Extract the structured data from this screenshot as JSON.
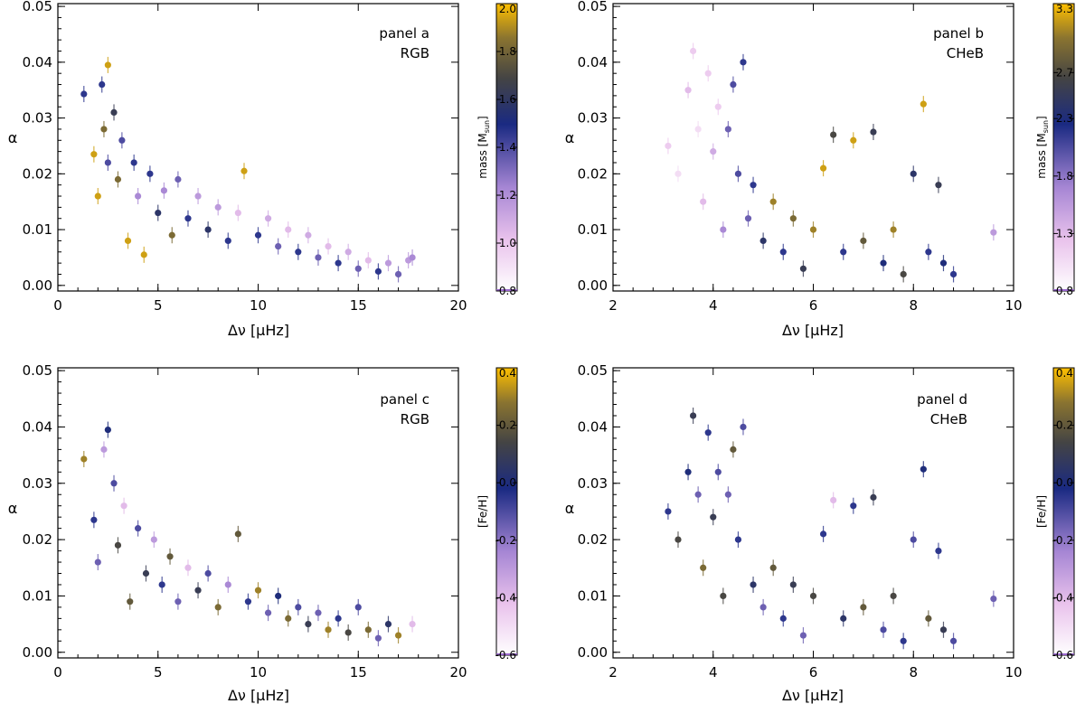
{
  "colormap": [
    "#ffffff",
    "#e9c2ec",
    "#a686d4",
    "#1a2a82",
    "#444444",
    "#8a7430",
    "#ffc000"
  ],
  "chart_data": [
    {
      "type": "scatter",
      "id": "a",
      "annotation": [
        "panel a",
        "RGB"
      ],
      "xlabel": "Δν [μHz]",
      "ylabel": "α",
      "xlim": [
        0,
        20
      ],
      "ylim": [
        -0.001,
        0.0505
      ],
      "xticks": [
        0,
        5,
        10,
        15,
        20
      ],
      "yticks": [
        0.0,
        0.01,
        0.02,
        0.03,
        0.04,
        0.05
      ],
      "ytick_labels": [
        "0.00",
        "0.01",
        "0.02",
        "0.03",
        "0.04",
        "0.05"
      ],
      "colorbar": {
        "label": "mass [Msun]",
        "range": [
          0.8,
          2.0
        ],
        "ticks": [
          0.8,
          1.0,
          1.2,
          1.4,
          1.6,
          1.8,
          2.0
        ],
        "tick_labels": [
          "0.8",
          "1.0",
          "1.2",
          "1.4",
          "1.6",
          "1.8",
          "2.0"
        ]
      },
      "points": [
        {
          "x": 1.3,
          "y": 0.0343,
          "c": 0.55
        },
        {
          "x": 1.8,
          "y": 0.0235,
          "c": 0.95
        },
        {
          "x": 2.0,
          "y": 0.016,
          "c": 0.95
        },
        {
          "x": 2.2,
          "y": 0.036,
          "c": 0.55
        },
        {
          "x": 2.3,
          "y": 0.028,
          "c": 0.85
        },
        {
          "x": 2.5,
          "y": 0.0395,
          "c": 0.95
        },
        {
          "x": 2.5,
          "y": 0.022,
          "c": 0.5
        },
        {
          "x": 2.8,
          "y": 0.031,
          "c": 0.7
        },
        {
          "x": 3.0,
          "y": 0.019,
          "c": 0.85
        },
        {
          "x": 3.2,
          "y": 0.026,
          "c": 0.5
        },
        {
          "x": 3.5,
          "y": 0.008,
          "c": 0.95
        },
        {
          "x": 3.8,
          "y": 0.022,
          "c": 0.55
        },
        {
          "x": 4.0,
          "y": 0.016,
          "c": 0.35
        },
        {
          "x": 4.3,
          "y": 0.0055,
          "c": 0.95
        },
        {
          "x": 4.6,
          "y": 0.02,
          "c": 0.55
        },
        {
          "x": 5.0,
          "y": 0.013,
          "c": 0.65
        },
        {
          "x": 5.3,
          "y": 0.017,
          "c": 0.35
        },
        {
          "x": 5.7,
          "y": 0.009,
          "c": 0.85
        },
        {
          "x": 6.0,
          "y": 0.019,
          "c": 0.45
        },
        {
          "x": 6.5,
          "y": 0.012,
          "c": 0.55
        },
        {
          "x": 7.0,
          "y": 0.016,
          "c": 0.3
        },
        {
          "x": 7.5,
          "y": 0.01,
          "c": 0.65
        },
        {
          "x": 8.0,
          "y": 0.014,
          "c": 0.3
        },
        {
          "x": 8.5,
          "y": 0.008,
          "c": 0.55
        },
        {
          "x": 9.0,
          "y": 0.013,
          "c": 0.2
        },
        {
          "x": 9.3,
          "y": 0.0205,
          "c": 0.95
        },
        {
          "x": 10.0,
          "y": 0.009,
          "c": 0.55
        },
        {
          "x": 10.5,
          "y": 0.012,
          "c": 0.25
        },
        {
          "x": 11.0,
          "y": 0.007,
          "c": 0.45
        },
        {
          "x": 11.5,
          "y": 0.01,
          "c": 0.2
        },
        {
          "x": 12.0,
          "y": 0.006,
          "c": 0.55
        },
        {
          "x": 12.5,
          "y": 0.009,
          "c": 0.25
        },
        {
          "x": 13.0,
          "y": 0.005,
          "c": 0.45
        },
        {
          "x": 13.5,
          "y": 0.007,
          "c": 0.2
        },
        {
          "x": 14.0,
          "y": 0.004,
          "c": 0.55
        },
        {
          "x": 14.5,
          "y": 0.006,
          "c": 0.25
        },
        {
          "x": 15.0,
          "y": 0.003,
          "c": 0.45
        },
        {
          "x": 15.5,
          "y": 0.0045,
          "c": 0.2
        },
        {
          "x": 16.0,
          "y": 0.0025,
          "c": 0.55
        },
        {
          "x": 16.5,
          "y": 0.004,
          "c": 0.3
        },
        {
          "x": 17.0,
          "y": 0.002,
          "c": 0.45
        },
        {
          "x": 17.5,
          "y": 0.0045,
          "c": 0.3
        },
        {
          "x": 17.7,
          "y": 0.005,
          "c": 0.35
        }
      ]
    },
    {
      "type": "scatter",
      "id": "b",
      "annotation": [
        "panel b",
        "CHeB"
      ],
      "xlabel": "Δν [μHz]",
      "ylabel": "α",
      "xlim": [
        2,
        10
      ],
      "ylim": [
        -0.001,
        0.0505
      ],
      "xticks": [
        2,
        4,
        6,
        8,
        10
      ],
      "yticks": [
        0.0,
        0.01,
        0.02,
        0.03,
        0.04,
        0.05
      ],
      "ytick_labels": [
        "0.00",
        "0.01",
        "0.02",
        "0.03",
        "0.04",
        "0.05"
      ],
      "colorbar": {
        "label": "mass [Msun]",
        "range": [
          0.8,
          3.3
        ],
        "ticks": [
          0.8,
          1.3,
          1.8,
          2.3,
          2.7,
          3.3
        ],
        "tick_labels": [
          "0.8",
          "1.3",
          "1.8",
          "2.3",
          "2.7",
          "3.3"
        ]
      },
      "points": [
        {
          "x": 3.1,
          "y": 0.025,
          "c": 0.15
        },
        {
          "x": 3.3,
          "y": 0.02,
          "c": 0.1
        },
        {
          "x": 3.5,
          "y": 0.035,
          "c": 0.2
        },
        {
          "x": 3.6,
          "y": 0.042,
          "c": 0.15
        },
        {
          "x": 3.7,
          "y": 0.028,
          "c": 0.1
        },
        {
          "x": 3.8,
          "y": 0.015,
          "c": 0.2
        },
        {
          "x": 3.9,
          "y": 0.038,
          "c": 0.15
        },
        {
          "x": 4.0,
          "y": 0.024,
          "c": 0.25
        },
        {
          "x": 4.1,
          "y": 0.032,
          "c": 0.15
        },
        {
          "x": 4.2,
          "y": 0.01,
          "c": 0.35
        },
        {
          "x": 4.3,
          "y": 0.028,
          "c": 0.45
        },
        {
          "x": 4.4,
          "y": 0.036,
          "c": 0.5
        },
        {
          "x": 4.5,
          "y": 0.02,
          "c": 0.5
        },
        {
          "x": 4.6,
          "y": 0.04,
          "c": 0.55
        },
        {
          "x": 4.7,
          "y": 0.012,
          "c": 0.45
        },
        {
          "x": 4.8,
          "y": 0.018,
          "c": 0.55
        },
        {
          "x": 5.0,
          "y": 0.008,
          "c": 0.65
        },
        {
          "x": 5.2,
          "y": 0.015,
          "c": 0.9
        },
        {
          "x": 5.4,
          "y": 0.006,
          "c": 0.55
        },
        {
          "x": 5.6,
          "y": 0.012,
          "c": 0.85
        },
        {
          "x": 5.8,
          "y": 0.003,
          "c": 0.7
        },
        {
          "x": 6.0,
          "y": 0.01,
          "c": 0.9
        },
        {
          "x": 6.2,
          "y": 0.021,
          "c": 0.95
        },
        {
          "x": 6.4,
          "y": 0.027,
          "c": 0.75
        },
        {
          "x": 6.6,
          "y": 0.006,
          "c": 0.55
        },
        {
          "x": 6.8,
          "y": 0.026,
          "c": 0.95
        },
        {
          "x": 7.0,
          "y": 0.008,
          "c": 0.8
        },
        {
          "x": 7.2,
          "y": 0.0275,
          "c": 0.7
        },
        {
          "x": 7.4,
          "y": 0.004,
          "c": 0.6
        },
        {
          "x": 7.6,
          "y": 0.01,
          "c": 0.9
        },
        {
          "x": 7.8,
          "y": 0.002,
          "c": 0.75
        },
        {
          "x": 8.0,
          "y": 0.02,
          "c": 0.65
        },
        {
          "x": 8.2,
          "y": 0.0325,
          "c": 0.95
        },
        {
          "x": 8.3,
          "y": 0.006,
          "c": 0.55
        },
        {
          "x": 8.5,
          "y": 0.018,
          "c": 0.7
        },
        {
          "x": 8.6,
          "y": 0.004,
          "c": 0.6
        },
        {
          "x": 8.8,
          "y": 0.002,
          "c": 0.55
        },
        {
          "x": 9.6,
          "y": 0.0095,
          "c": 0.3
        }
      ]
    },
    {
      "type": "scatter",
      "id": "c",
      "annotation": [
        "panel c",
        "RGB"
      ],
      "xlabel": "Δν [μHz]",
      "ylabel": "α",
      "xlim": [
        0,
        20
      ],
      "ylim": [
        -0.001,
        0.0505
      ],
      "xticks": [
        0,
        5,
        10,
        15,
        20
      ],
      "yticks": [
        0.0,
        0.01,
        0.02,
        0.03,
        0.04,
        0.05
      ],
      "ytick_labels": [
        "0.00",
        "0.01",
        "0.02",
        "0.03",
        "0.04",
        "0.05"
      ],
      "colorbar": {
        "label": "[Fe/H]",
        "range": [
          -0.6,
          0.4
        ],
        "ticks": [
          -0.6,
          -0.4,
          -0.2,
          0.0,
          0.2,
          0.4
        ],
        "tick_labels": [
          "-0.6",
          "-0.4",
          "-0.2",
          "0.0",
          "0.2",
          "0.4"
        ]
      },
      "points": [
        {
          "x": 1.3,
          "y": 0.0343,
          "c": 0.9
        },
        {
          "x": 1.8,
          "y": 0.0235,
          "c": 0.55
        },
        {
          "x": 2.0,
          "y": 0.016,
          "c": 0.45
        },
        {
          "x": 2.3,
          "y": 0.036,
          "c": 0.3
        },
        {
          "x": 2.5,
          "y": 0.0395,
          "c": 0.6
        },
        {
          "x": 2.8,
          "y": 0.03,
          "c": 0.5
        },
        {
          "x": 3.0,
          "y": 0.019,
          "c": 0.75
        },
        {
          "x": 3.3,
          "y": 0.026,
          "c": 0.2
        },
        {
          "x": 3.6,
          "y": 0.009,
          "c": 0.8
        },
        {
          "x": 4.0,
          "y": 0.022,
          "c": 0.5
        },
        {
          "x": 4.4,
          "y": 0.014,
          "c": 0.7
        },
        {
          "x": 4.8,
          "y": 0.02,
          "c": 0.3
        },
        {
          "x": 5.2,
          "y": 0.012,
          "c": 0.55
        },
        {
          "x": 5.6,
          "y": 0.017,
          "c": 0.8
        },
        {
          "x": 6.0,
          "y": 0.009,
          "c": 0.45
        },
        {
          "x": 6.5,
          "y": 0.015,
          "c": 0.2
        },
        {
          "x": 7.0,
          "y": 0.011,
          "c": 0.7
        },
        {
          "x": 7.5,
          "y": 0.014,
          "c": 0.5
        },
        {
          "x": 8.0,
          "y": 0.008,
          "c": 0.85
        },
        {
          "x": 8.5,
          "y": 0.012,
          "c": 0.35
        },
        {
          "x": 9.0,
          "y": 0.021,
          "c": 0.8
        },
        {
          "x": 9.5,
          "y": 0.009,
          "c": 0.55
        },
        {
          "x": 10.0,
          "y": 0.011,
          "c": 0.9
        },
        {
          "x": 10.5,
          "y": 0.007,
          "c": 0.45
        },
        {
          "x": 11.0,
          "y": 0.01,
          "c": 0.6
        },
        {
          "x": 11.5,
          "y": 0.006,
          "c": 0.85
        },
        {
          "x": 12.0,
          "y": 0.008,
          "c": 0.5
        },
        {
          "x": 12.5,
          "y": 0.005,
          "c": 0.7
        },
        {
          "x": 13.0,
          "y": 0.007,
          "c": 0.45
        },
        {
          "x": 13.5,
          "y": 0.004,
          "c": 0.9
        },
        {
          "x": 14.0,
          "y": 0.006,
          "c": 0.55
        },
        {
          "x": 14.5,
          "y": 0.0035,
          "c": 0.75
        },
        {
          "x": 15.0,
          "y": 0.008,
          "c": 0.5
        },
        {
          "x": 15.5,
          "y": 0.004,
          "c": 0.85
        },
        {
          "x": 16.0,
          "y": 0.0025,
          "c": 0.45
        },
        {
          "x": 16.5,
          "y": 0.005,
          "c": 0.65
        },
        {
          "x": 17.0,
          "y": 0.003,
          "c": 0.9
        },
        {
          "x": 17.7,
          "y": 0.005,
          "c": 0.2
        }
      ]
    },
    {
      "type": "scatter",
      "id": "d",
      "annotation": [
        "panel d",
        "CHeB"
      ],
      "xlabel": "Δν [μHz]",
      "ylabel": "α",
      "xlim": [
        2,
        10
      ],
      "ylim": [
        -0.001,
        0.0505
      ],
      "xticks": [
        2,
        4,
        6,
        8,
        10
      ],
      "yticks": [
        0.0,
        0.01,
        0.02,
        0.03,
        0.04,
        0.05
      ],
      "ytick_labels": [
        "0.00",
        "0.01",
        "0.02",
        "0.03",
        "0.04",
        "0.05"
      ],
      "colorbar": {
        "label": "[Fe/H]",
        "range": [
          -0.6,
          0.4
        ],
        "ticks": [
          -0.6,
          -0.4,
          -0.2,
          0.0,
          0.2,
          0.4
        ],
        "tick_labels": [
          "-0.6",
          "-0.4",
          "-0.2",
          "0.0",
          "0.2",
          "0.4"
        ]
      },
      "points": [
        {
          "x": 3.1,
          "y": 0.025,
          "c": 0.55
        },
        {
          "x": 3.3,
          "y": 0.02,
          "c": 0.75
        },
        {
          "x": 3.5,
          "y": 0.032,
          "c": 0.6
        },
        {
          "x": 3.6,
          "y": 0.042,
          "c": 0.7
        },
        {
          "x": 3.7,
          "y": 0.028,
          "c": 0.45
        },
        {
          "x": 3.8,
          "y": 0.015,
          "c": 0.85
        },
        {
          "x": 3.9,
          "y": 0.039,
          "c": 0.55
        },
        {
          "x": 4.0,
          "y": 0.024,
          "c": 0.7
        },
        {
          "x": 4.1,
          "y": 0.032,
          "c": 0.5
        },
        {
          "x": 4.2,
          "y": 0.01,
          "c": 0.75
        },
        {
          "x": 4.3,
          "y": 0.028,
          "c": 0.45
        },
        {
          "x": 4.4,
          "y": 0.036,
          "c": 0.8
        },
        {
          "x": 4.5,
          "y": 0.02,
          "c": 0.55
        },
        {
          "x": 4.6,
          "y": 0.04,
          "c": 0.5
        },
        {
          "x": 4.8,
          "y": 0.012,
          "c": 0.65
        },
        {
          "x": 5.0,
          "y": 0.008,
          "c": 0.45
        },
        {
          "x": 5.2,
          "y": 0.015,
          "c": 0.8
        },
        {
          "x": 5.4,
          "y": 0.006,
          "c": 0.55
        },
        {
          "x": 5.6,
          "y": 0.012,
          "c": 0.7
        },
        {
          "x": 5.8,
          "y": 0.003,
          "c": 0.45
        },
        {
          "x": 6.0,
          "y": 0.01,
          "c": 0.75
        },
        {
          "x": 6.2,
          "y": 0.021,
          "c": 0.55
        },
        {
          "x": 6.4,
          "y": 0.027,
          "c": 0.2
        },
        {
          "x": 6.6,
          "y": 0.006,
          "c": 0.65
        },
        {
          "x": 6.8,
          "y": 0.026,
          "c": 0.55
        },
        {
          "x": 7.0,
          "y": 0.008,
          "c": 0.8
        },
        {
          "x": 7.2,
          "y": 0.0275,
          "c": 0.7
        },
        {
          "x": 7.4,
          "y": 0.004,
          "c": 0.5
        },
        {
          "x": 7.6,
          "y": 0.01,
          "c": 0.75
        },
        {
          "x": 7.8,
          "y": 0.002,
          "c": 0.55
        },
        {
          "x": 8.0,
          "y": 0.02,
          "c": 0.5
        },
        {
          "x": 8.2,
          "y": 0.0325,
          "c": 0.6
        },
        {
          "x": 8.3,
          "y": 0.006,
          "c": 0.8
        },
        {
          "x": 8.5,
          "y": 0.018,
          "c": 0.55
        },
        {
          "x": 8.6,
          "y": 0.004,
          "c": 0.7
        },
        {
          "x": 8.8,
          "y": 0.002,
          "c": 0.5
        },
        {
          "x": 9.6,
          "y": 0.0095,
          "c": 0.45
        }
      ]
    }
  ]
}
